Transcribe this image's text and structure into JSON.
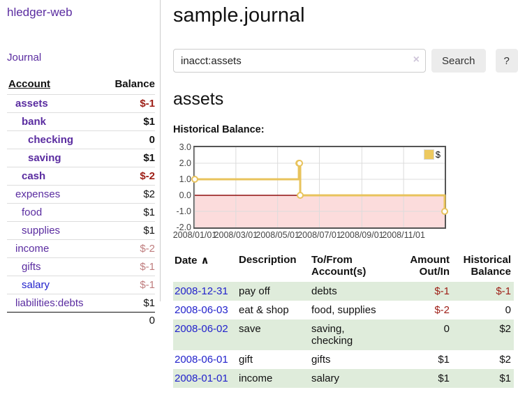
{
  "app": {
    "brand": "hledger-web"
  },
  "sidebar": {
    "journal_link": "Journal",
    "accounts": {
      "header": {
        "account": "Account",
        "balance": "Balance"
      },
      "rows": [
        {
          "name": "assets",
          "balance": "$-1"
        },
        {
          "name": "bank",
          "balance": "$1"
        },
        {
          "name": "checking",
          "balance": "0"
        },
        {
          "name": "saving",
          "balance": "$1"
        },
        {
          "name": "cash",
          "balance": "$-2"
        },
        {
          "name": "expenses",
          "balance": "$2"
        },
        {
          "name": "food",
          "balance": "$1"
        },
        {
          "name": "supplies",
          "balance": "$1"
        },
        {
          "name": "income",
          "balance": "$-2"
        },
        {
          "name": "gifts",
          "balance": "$-1"
        },
        {
          "name": "salary",
          "balance": "$-1"
        },
        {
          "name": "liabilities:debts",
          "balance": "$1"
        }
      ],
      "total": "0"
    }
  },
  "main": {
    "title": "sample.journal",
    "search": {
      "value": "inacct:assets",
      "clear_icon": "×",
      "search_button": "Search",
      "help_button": "?"
    },
    "account_heading": "assets",
    "section_heading": "Historical Balance:"
  },
  "chart_data": {
    "type": "line",
    "step": true,
    "title": "Historical Balance of assets",
    "x_range": [
      "2008-01-01",
      "2008-12-31"
    ],
    "ylim": [
      -2,
      3
    ],
    "yticks": [
      "3.0",
      "2.0",
      "1.0",
      "0.0",
      "-1.0",
      "-2.0"
    ],
    "xticks": [
      "2008/01/01",
      "2008/03/01",
      "2008/05/01",
      "2008/07/01",
      "2008/09/01",
      "2008/11/01"
    ],
    "series": [
      {
        "name": "$",
        "color": "#e8c35c",
        "points": [
          [
            "2008-01-01",
            1
          ],
          [
            "2008-06-01",
            2
          ],
          [
            "2008-06-02",
            2
          ],
          [
            "2008-06-03",
            0
          ],
          [
            "2008-12-31",
            -1
          ]
        ]
      }
    ],
    "legend": [
      {
        "label": "$",
        "color": "#edc95f"
      }
    ],
    "legend_position": "top-right",
    "grid": true,
    "negative_region_color": "#fcdcdc",
    "zero_line_color": "#8f0e0e",
    "gridline_color": "#dcdcdc"
  },
  "register": {
    "headers": {
      "date": "Date",
      "sort_indicator": "∧",
      "description": "Description",
      "accounts": "To/From Account(s)",
      "amount": "Amount Out/In",
      "balance": "Historical Balance"
    },
    "rows": [
      {
        "date": "2008-12-31",
        "description": "pay off",
        "accounts": "debts",
        "amount": "$-1",
        "balance": "$-1"
      },
      {
        "date": "2008-06-03",
        "description": "eat & shop",
        "accounts": "food, supplies",
        "amount": "$-2",
        "balance": "0"
      },
      {
        "date": "2008-06-02",
        "description": "save",
        "accounts": "saving,\nchecking",
        "amount": "0",
        "balance": "$2"
      },
      {
        "date": "2008-06-01",
        "description": "gift",
        "accounts": "gifts",
        "amount": "$1",
        "balance": "$2"
      },
      {
        "date": "2008-01-01",
        "description": "income",
        "accounts": "salary",
        "amount": "$1",
        "balance": "$1"
      }
    ]
  },
  "colors": {
    "link_purple": "#5a2ca0",
    "link_blue": "#2222cc",
    "negative_red": "#9d1d15",
    "negative_faint": "#bf7d7e",
    "row_green": "#dfecdb",
    "series_gold": "#e8c35c"
  }
}
